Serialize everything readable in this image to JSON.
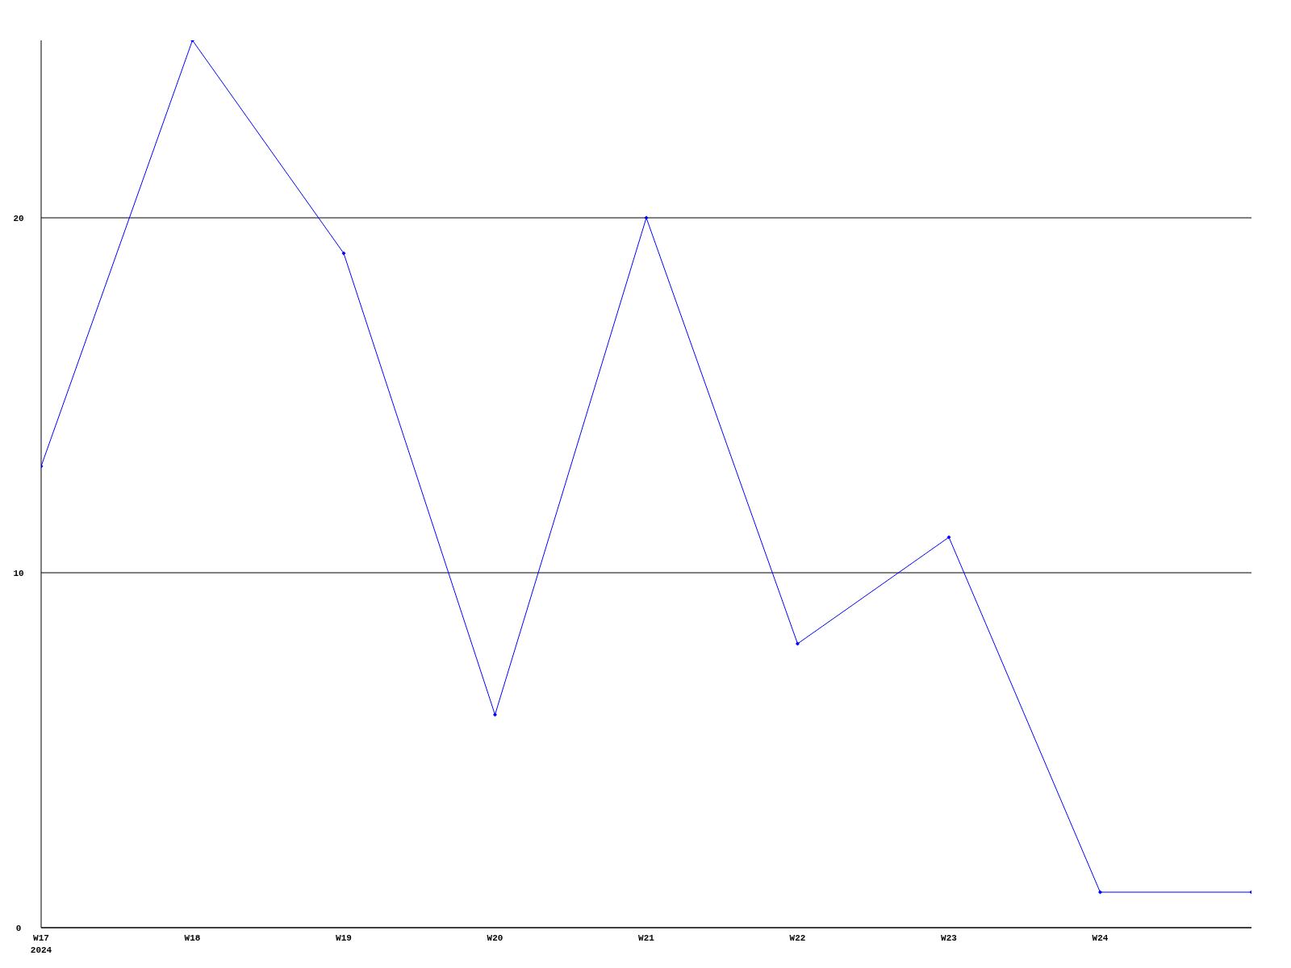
{
  "chart_data": {
    "type": "line",
    "categories": [
      "W17\n2024",
      "W18",
      "W19",
      "W20",
      "W21",
      "W22",
      "W23",
      "W24",
      null
    ],
    "series": [
      {
        "color": "#0000ff",
        "values": [
          13,
          25,
          19,
          6,
          20,
          8,
          11,
          1,
          1
        ]
      }
    ],
    "ylim": [
      0,
      25
    ],
    "yticks": [
      0,
      10,
      20
    ],
    "grid": "y",
    "marker": "diamond",
    "line_style": "solid"
  }
}
